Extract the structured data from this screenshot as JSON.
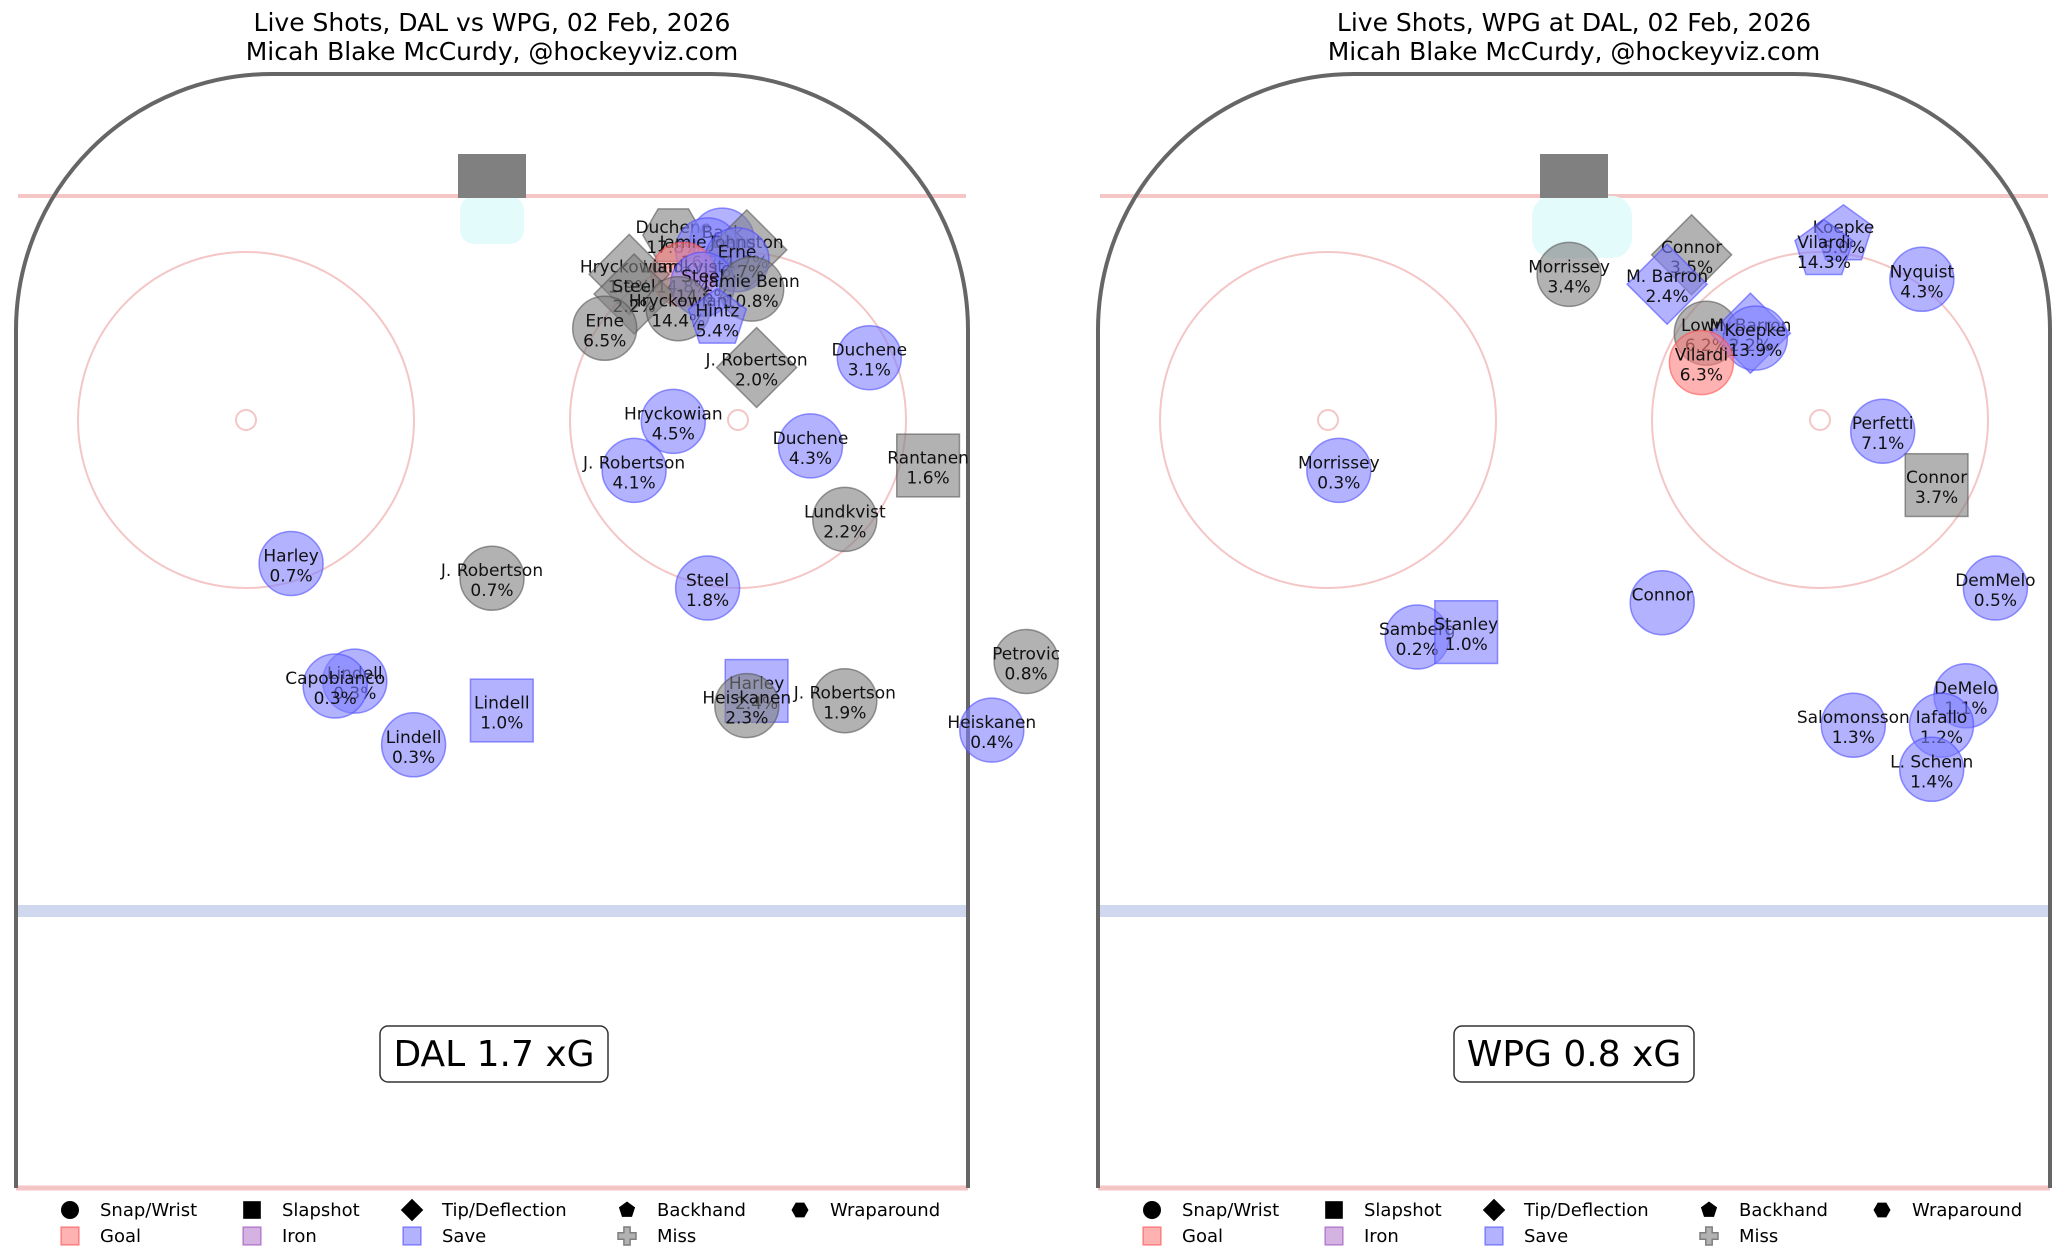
{
  "chart_data": [
    {
      "type": "scatter",
      "title_line1": "Live Shots, DAL vs WPG, 02 Feb, 2026",
      "title_line2": "Micah Blake McCurdy, @hockeyviz.com",
      "xg_label": "DAL 1.7 xG",
      "shots": [
        {
          "player": "Duchene",
          "pct": "17.8%",
          "x": 37,
          "y": 81,
          "shape": "hexagon",
          "result": "miss"
        },
        {
          "player": "Back",
          "pct": "",
          "x": 47,
          "y": 80,
          "shape": "circle",
          "result": "save"
        },
        {
          "player": "Jamie Benn",
          "pct": "16.7%",
          "x": 44,
          "y": 78,
          "shape": "circle",
          "result": "save"
        },
        {
          "player": "Johnston",
          "pct": "1.7%",
          "x": 52,
          "y": 78,
          "shape": "diamond",
          "result": "miss"
        },
        {
          "player": "Erne",
          "pct": "16.7%",
          "x": 50,
          "y": 76,
          "shape": "circle",
          "result": "save"
        },
        {
          "player": "Lundkvist",
          "pct": "14.8%",
          "x": 39,
          "y": 73,
          "shape": "circle",
          "result": "goal"
        },
        {
          "player": "Hryckowian",
          "pct": "1.9%",
          "x": 28,
          "y": 73,
          "shape": "diamond",
          "result": "miss"
        },
        {
          "player": "Steel",
          "pct": "14.6%",
          "x": 43,
          "y": 71,
          "shape": "circle",
          "result": "save"
        },
        {
          "player": "Jamie Benn",
          "pct": "10.8%",
          "x": 53,
          "y": 70,
          "shape": "circle",
          "result": "miss"
        },
        {
          "player": "Steel",
          "pct": "2.2%",
          "x": 29,
          "y": 69,
          "shape": "diamond",
          "result": "miss"
        },
        {
          "player": "Hryckowian",
          "pct": "14.4%",
          "x": 38,
          "y": 66,
          "shape": "circle",
          "result": "miss"
        },
        {
          "player": "Erne",
          "pct": "6.5%",
          "x": 23,
          "y": 62,
          "shape": "circle",
          "result": "miss"
        },
        {
          "player": "Hintz",
          "pct": "5.4%",
          "x": 46,
          "y": 64,
          "shape": "pentagon",
          "result": "save"
        },
        {
          "player": "J. Robertson",
          "pct": "2.0%",
          "x": 54,
          "y": 54,
          "shape": "diamond",
          "result": "miss"
        },
        {
          "player": "Duchene",
          "pct": "3.1%",
          "x": 77,
          "y": 56,
          "shape": "circle",
          "result": "save"
        },
        {
          "player": "Hryckowian",
          "pct": "4.5%",
          "x": 37,
          "y": 43,
          "shape": "circle",
          "result": "save"
        },
        {
          "player": "Duchene",
          "pct": "4.3%",
          "x": 65,
          "y": 38,
          "shape": "circle",
          "result": "save"
        },
        {
          "player": "J. Robertson",
          "pct": "4.1%",
          "x": 29,
          "y": 33,
          "shape": "circle",
          "result": "save"
        },
        {
          "player": "Rantanen",
          "pct": "1.6%",
          "x": 89,
          "y": 34,
          "shape": "square",
          "result": "miss"
        },
        {
          "player": "Lundkvist",
          "pct": "2.2%",
          "x": 72,
          "y": 23,
          "shape": "circle",
          "result": "miss"
        },
        {
          "player": "Harley",
          "pct": "0.7%",
          "x": -41,
          "y": 14,
          "shape": "circle",
          "result": "save"
        },
        {
          "player": "J. Robertson",
          "pct": "0.7%",
          "x": 0,
          "y": 11,
          "shape": "circle",
          "result": "miss"
        },
        {
          "player": "Steel",
          "pct": "1.8%",
          "x": 44,
          "y": 9,
          "shape": "circle",
          "result": "save"
        },
        {
          "player": "Petrovic",
          "pct": "0.8%",
          "x": 109,
          "y": -6,
          "shape": "circle",
          "result": "miss"
        },
        {
          "player": "Lindell",
          "pct": "0.3%",
          "x": -28,
          "y": -10,
          "shape": "circle",
          "result": "save"
        },
        {
          "player": "Capobianco",
          "pct": "0.3%",
          "x": -32,
          "y": -11,
          "shape": "circle",
          "result": "save"
        },
        {
          "player": "Lindell",
          "pct": "1.0%",
          "x": 2,
          "y": -16,
          "shape": "square",
          "result": "save"
        },
        {
          "player": "Harley",
          "pct": "2.4%",
          "x": 54,
          "y": -12,
          "shape": "square",
          "result": "save"
        },
        {
          "player": "Heiskanen",
          "pct": "2.3%",
          "x": 52,
          "y": -15,
          "shape": "circle",
          "result": "miss"
        },
        {
          "player": "J. Robertson",
          "pct": "1.9%",
          "x": 72,
          "y": -14,
          "shape": "circle",
          "result": "miss"
        },
        {
          "player": "Lindell",
          "pct": "0.3%",
          "x": -16,
          "y": -23,
          "shape": "circle",
          "result": "save"
        },
        {
          "player": "Heiskanen",
          "pct": "0.4%",
          "x": 102,
          "y": -20,
          "shape": "circle",
          "result": "save"
        }
      ]
    },
    {
      "type": "scatter",
      "title_line1": "Live Shots, WPG at DAL, 02 Feb, 2026",
      "title_line2": "Micah Blake McCurdy, @hockeyviz.com",
      "xg_label": "WPG 0.8 xG",
      "shots": [
        {
          "player": "Koepke",
          "pct": "5.0%",
          "x": 55,
          "y": 81,
          "shape": "pentagon",
          "result": "save"
        },
        {
          "player": "Vilardi",
          "pct": "14.3%",
          "x": 51,
          "y": 78,
          "shape": "pentagon",
          "result": "save"
        },
        {
          "player": "Connor",
          "pct": "3.5%",
          "x": 24,
          "y": 77,
          "shape": "diamond",
          "result": "miss"
        },
        {
          "player": "Morrissey",
          "pct": "3.4%",
          "x": -1,
          "y": 73,
          "shape": "circle",
          "result": "miss"
        },
        {
          "player": "M. Barron",
          "pct": "2.4%",
          "x": 19,
          "y": 71,
          "shape": "diamond",
          "result": "save"
        },
        {
          "player": "Nyquist",
          "pct": "4.3%",
          "x": 71,
          "y": 72,
          "shape": "circle",
          "result": "save"
        },
        {
          "player": "Lowry",
          "pct": "6.2%",
          "x": 27,
          "y": 61,
          "shape": "circle",
          "result": "miss"
        },
        {
          "player": "M. Barron",
          "pct": "2.2%",
          "x": 36,
          "y": 61,
          "shape": "diamond",
          "result": "save"
        },
        {
          "player": "Koepke",
          "pct": "13.9%",
          "x": 37,
          "y": 60,
          "shape": "circle",
          "result": "save"
        },
        {
          "player": "Vilardi",
          "pct": "6.3%",
          "x": 26,
          "y": 55,
          "shape": "circle",
          "result": "goal"
        },
        {
          "player": "Perfetti",
          "pct": "7.1%",
          "x": 63,
          "y": 41,
          "shape": "circle",
          "result": "save"
        },
        {
          "player": "Morrissey",
          "pct": "0.3%",
          "x": -48,
          "y": 33,
          "shape": "circle",
          "result": "save"
        },
        {
          "player": "Connor",
          "pct": "3.7%",
          "x": 74,
          "y": 30,
          "shape": "square",
          "result": "miss"
        },
        {
          "player": "Connor",
          "pct": "",
          "x": 18,
          "y": 6,
          "shape": "circle",
          "result": "save"
        },
        {
          "player": "DemMelo",
          "pct": "0.5%",
          "x": 86,
          "y": 9,
          "shape": "circle",
          "result": "save"
        },
        {
          "player": "Samberg",
          "pct": "0.2%",
          "x": -32,
          "y": -1,
          "shape": "circle",
          "result": "save"
        },
        {
          "player": "Stanley",
          "pct": "1.0%",
          "x": -22,
          "y": 0,
          "shape": "square",
          "result": "save"
        },
        {
          "player": "DeMelo",
          "pct": "1.1%",
          "x": 80,
          "y": -13,
          "shape": "circle",
          "result": "save"
        },
        {
          "player": "Iafallo",
          "pct": "1.2%",
          "x": 75,
          "y": -19,
          "shape": "circle",
          "result": "save"
        },
        {
          "player": "Salomonsson",
          "pct": "1.3%",
          "x": 57,
          "y": -19,
          "shape": "circle",
          "result": "save"
        },
        {
          "player": "L. Schenn",
          "pct": "1.4%",
          "x": 73,
          "y": -28,
          "shape": "circle",
          "result": "save"
        }
      ]
    }
  ],
  "legend": {
    "shapes": [
      {
        "label": "Snap/Wrist",
        "shape": "circle"
      },
      {
        "label": "Slapshot",
        "shape": "square"
      },
      {
        "label": "Tip/Deflection",
        "shape": "diamond"
      },
      {
        "label": "Backhand",
        "shape": "pentagon"
      },
      {
        "label": "Wraparound",
        "shape": "hexagon"
      }
    ],
    "results": [
      {
        "label": "Goal",
        "color": "#ff7f7f"
      },
      {
        "label": "Iron",
        "color": "#b77fcf"
      },
      {
        "label": "Save",
        "color": "#7f7fff"
      },
      {
        "label": "Miss",
        "color": "#7f7f7f"
      }
    ]
  },
  "colors": {
    "goal": "#ff7f7f",
    "save": "#7f7fff",
    "miss": "#7f7f7f",
    "iron": "#b77fcf"
  }
}
